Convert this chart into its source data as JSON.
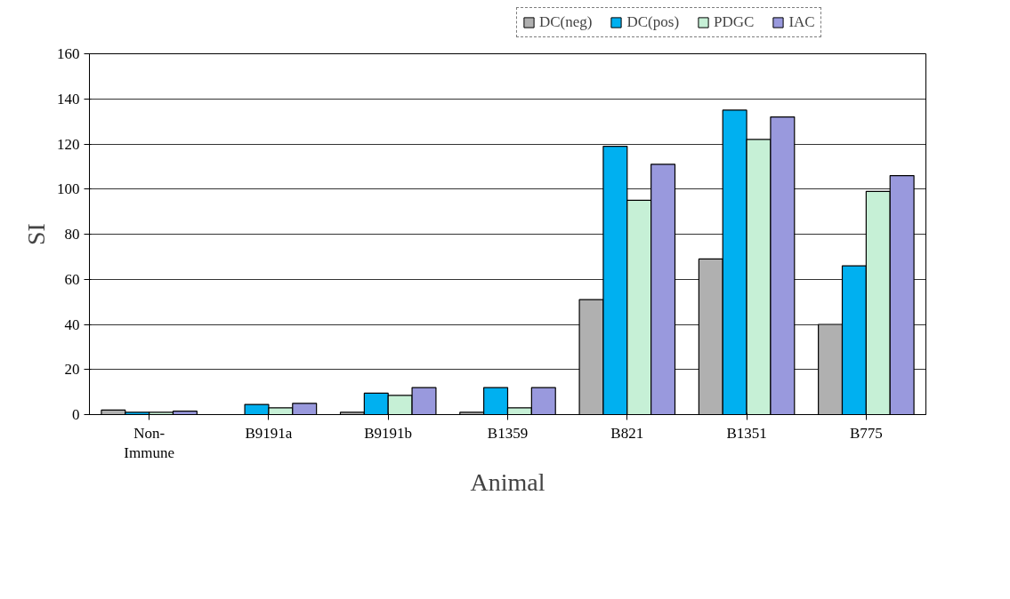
{
  "chart_data": {
    "type": "bar",
    "xlabel": "Animal",
    "ylabel": "SI",
    "categories": [
      "Non-\nImmune",
      "B9191a",
      "B9191b",
      "B1359",
      "B821",
      "B1351",
      "B775"
    ],
    "series": [
      {
        "name": "DC(neg)",
        "color": "#b0b0b0",
        "values": [
          2,
          null,
          1,
          1,
          51,
          69,
          40
        ]
      },
      {
        "name": "DC(pos)",
        "color": "#00b0f0",
        "values": [
          1,
          4.5,
          9.5,
          12,
          119,
          135,
          66
        ]
      },
      {
        "name": "PDGC",
        "color": "#c6f0d6",
        "values": [
          1,
          3,
          8.5,
          3,
          95,
          122,
          99
        ]
      },
      {
        "name": "IAC",
        "color": "#9999dd",
        "values": [
          1.5,
          5,
          12,
          12,
          111,
          132,
          106
        ]
      }
    ],
    "ylim": [
      0,
      160
    ],
    "yticks": [
      0,
      20,
      40,
      60,
      80,
      100,
      120,
      140,
      160
    ],
    "grid": "y",
    "legend": "top"
  }
}
